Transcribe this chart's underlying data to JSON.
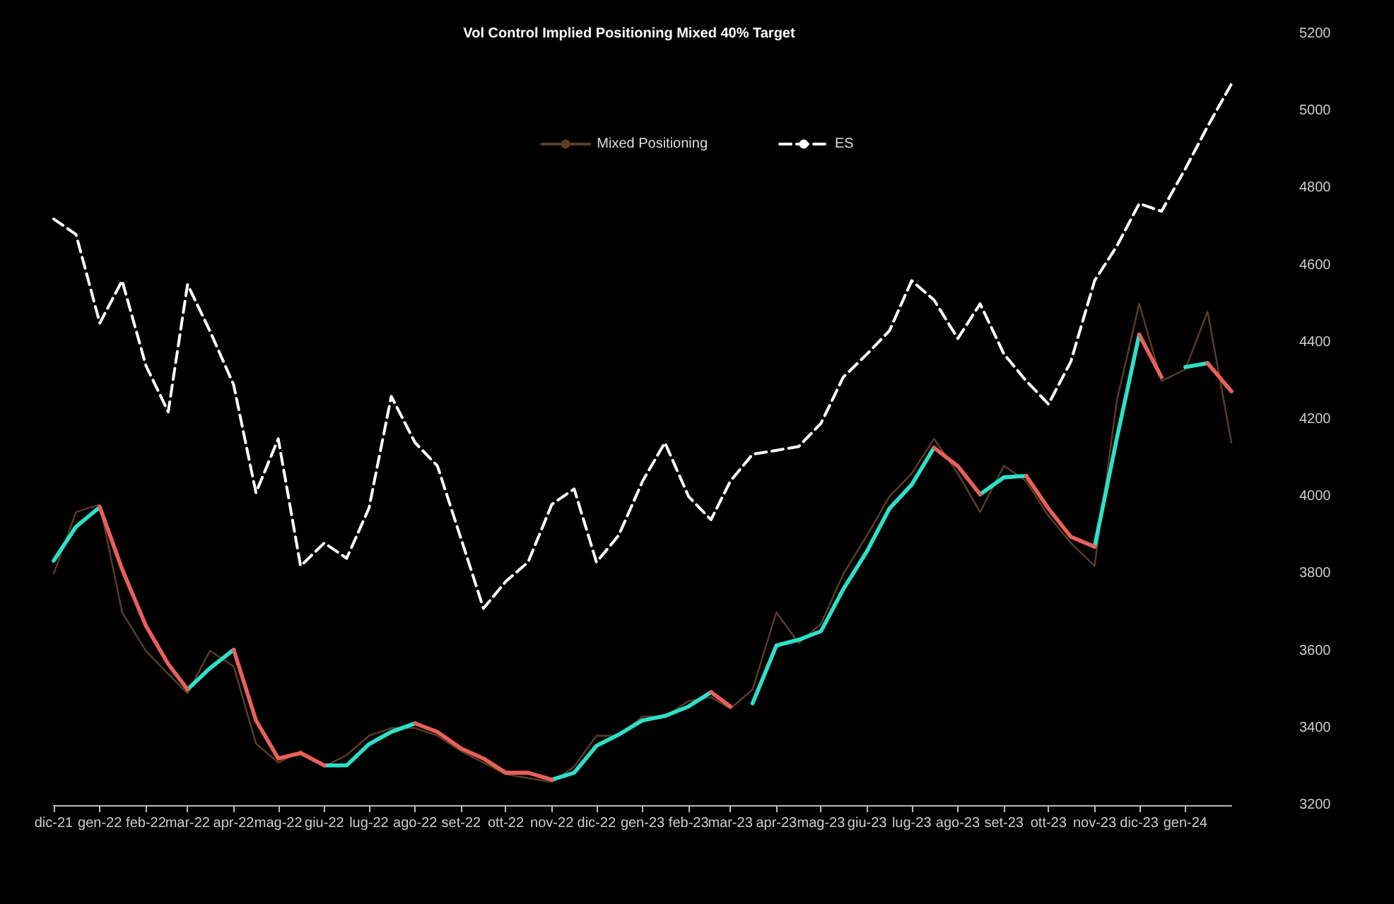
{
  "chart_data": {
    "type": "line",
    "title": "Vol Control Implied Positioning Mixed 40% Target",
    "x": [
      "2021-12-01",
      "2021-12-16",
      "2022-01-01",
      "2022-01-16",
      "2022-02-01",
      "2022-02-16",
      "2022-03-01",
      "2022-03-16",
      "2022-04-01",
      "2022-04-16",
      "2022-05-01",
      "2022-05-16",
      "2022-06-01",
      "2022-06-16",
      "2022-07-01",
      "2022-07-16",
      "2022-08-01",
      "2022-08-16",
      "2022-09-01",
      "2022-09-16",
      "2022-10-01",
      "2022-10-16",
      "2022-11-01",
      "2022-11-16",
      "2022-12-01",
      "2022-12-16",
      "2023-01-01",
      "2023-01-16",
      "2023-02-01",
      "2023-02-16",
      "2023-03-01",
      "2023-03-16",
      "2023-04-01",
      "2023-04-16",
      "2023-05-01",
      "2023-05-16",
      "2023-06-01",
      "2023-06-16",
      "2023-07-01",
      "2023-07-16",
      "2023-08-01",
      "2023-08-16",
      "2023-09-01",
      "2023-09-16",
      "2023-10-01",
      "2023-10-16",
      "2023-11-01",
      "2023-11-16",
      "2023-12-01",
      "2023-12-16",
      "2024-01-01",
      "2024-01-16",
      "2024-02-01"
    ],
    "series": [
      {
        "name": "Mixed Positioning",
        "color": "#5c3d24",
        "values": [
          3800,
          3960,
          3980,
          3700,
          3600,
          3540,
          3490,
          3600,
          3560,
          3360,
          3310,
          3340,
          3300,
          3330,
          3380,
          3400,
          3400,
          3380,
          3340,
          3310,
          3280,
          3270,
          3260,
          3300,
          3380,
          3380,
          3430,
          3430,
          3470,
          3480,
          3450,
          3500,
          3700,
          3620,
          3670,
          3800,
          3900,
          4000,
          4060,
          4150,
          4060,
          3960,
          4080,
          4040,
          3950,
          3880,
          3820,
          4250,
          4500,
          4300,
          4330,
          4480,
          4140
        ]
      },
      {
        "name": "ES",
        "color": "#ffffff",
        "line_style": "dashed",
        "values": [
          4720,
          4680,
          4450,
          4560,
          4340,
          4220,
          4550,
          4430,
          4290,
          4010,
          4150,
          3820,
          3880,
          3840,
          3970,
          4260,
          4140,
          4080,
          3890,
          3710,
          3780,
          3830,
          3980,
          4020,
          3830,
          3900,
          4040,
          4140,
          4000,
          3940,
          4040,
          4110,
          4120,
          4130,
          4190,
          4310,
          4370,
          4430,
          4560,
          4510,
          4410,
          4500,
          4370,
          4300,
          4240,
          4350,
          4560,
          4650,
          4760,
          4740,
          4850,
          4960,
          5070
        ]
      },
      {
        "color": "#2de0c8",
        "values": [
          3834,
          3922,
          3973,
          null,
          null,
          null,
          3500,
          3555,
          3603,
          null,
          null,
          null,
          3303,
          3303,
          3358,
          3390,
          3412,
          null,
          null,
          null,
          null,
          null,
          3266,
          3284,
          3354,
          3383,
          3420,
          3431,
          3456,
          3493,
          null,
          3464,
          3614,
          3629,
          3651,
          3760,
          3859,
          3969,
          4031,
          4127,
          null,
          4006,
          4050,
          4054,
          null,
          null,
          3870,
          4152,
          4420,
          null,
          4336,
          4346,
          null
        ]
      },
      {
        "color": "#e8605a",
        "values": [
          null,
          null,
          3973,
          3812,
          3665,
          3566,
          3500,
          null,
          3603,
          3420,
          3321,
          3335,
          3303,
          null,
          null,
          null,
          3412,
          3390,
          3347,
          3321,
          3284,
          3284,
          3266,
          null,
          null,
          null,
          null,
          null,
          null,
          3493,
          3456,
          null,
          null,
          null,
          null,
          null,
          null,
          null,
          null,
          4127,
          4079,
          4006,
          null,
          4054,
          3969,
          3896,
          3870,
          null,
          4420,
          4310,
          null,
          4346,
          4273
        ]
      }
    ],
    "xlim": [
      "2021-12-01",
      "2024-02-01"
    ],
    "xticks": [
      {
        "value": "2021-12-01",
        "label": "dic-21"
      },
      {
        "value": "2022-01-01",
        "label": "gen-22"
      },
      {
        "value": "2022-02-01",
        "label": "feb-22"
      },
      {
        "value": "2022-03-01",
        "label": "mar-22"
      },
      {
        "value": "2022-04-01",
        "label": "apr-22"
      },
      {
        "value": "2022-05-01",
        "label": "mag-22"
      },
      {
        "value": "2022-06-01",
        "label": "giu-22"
      },
      {
        "value": "2022-07-01",
        "label": "lug-22"
      },
      {
        "value": "2022-08-01",
        "label": "ago-22"
      },
      {
        "value": "2022-09-01",
        "label": "set-22"
      },
      {
        "value": "2022-10-01",
        "label": "ott-22"
      },
      {
        "value": "2022-11-01",
        "label": "nov-22"
      },
      {
        "value": "2022-12-01",
        "label": "dic-22"
      },
      {
        "value": "2023-01-01",
        "label": "gen-23"
      },
      {
        "value": "2023-02-01",
        "label": "feb-23"
      },
      {
        "value": "2023-03-01",
        "label": "mar-23"
      },
      {
        "value": "2023-04-01",
        "label": "apr-23"
      },
      {
        "value": "2023-05-01",
        "label": "mag-23"
      },
      {
        "value": "2023-06-01",
        "label": "giu-23"
      },
      {
        "value": "2023-07-01",
        "label": "lug-23"
      },
      {
        "value": "2023-08-01",
        "label": "ago-23"
      },
      {
        "value": "2023-09-01",
        "label": "set-23"
      },
      {
        "value": "2023-10-01",
        "label": "ott-23"
      },
      {
        "value": "2023-11-01",
        "label": "nov-23"
      },
      {
        "value": "2023-12-01",
        "label": "dic-23"
      },
      {
        "value": "2024-01-01",
        "label": "gen-24"
      }
    ],
    "ylim": [
      3200,
      5200
    ],
    "yticks": [
      3200,
      3400,
      3600,
      3800,
      4000,
      4200,
      4400,
      4600,
      4800,
      5000,
      5200
    ],
    "grid": false,
    "legend": "top",
    "marker": "none",
    "line_style": "solid"
  }
}
